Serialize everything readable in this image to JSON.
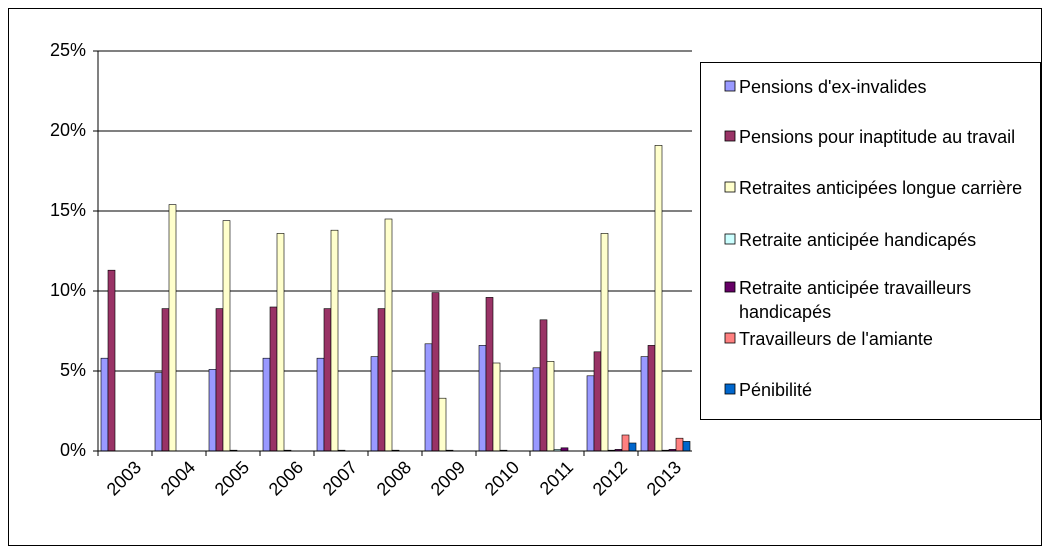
{
  "chart_data": {
    "type": "bar",
    "categories": [
      "2003",
      "2004",
      "2005",
      "2006",
      "2007",
      "2008",
      "2009",
      "2010",
      "2011",
      "2012",
      "2013"
    ],
    "series": [
      {
        "name": "Pensions d'ex-invalides",
        "color": "#9999ff",
        "values": [
          5.8,
          4.9,
          5.1,
          5.8,
          5.8,
          5.9,
          6.7,
          6.6,
          5.2,
          4.7,
          5.9
        ]
      },
      {
        "name": "Pensions pour inaptitude au travail",
        "color": "#993366",
        "values": [
          11.3,
          8.9,
          8.9,
          9.0,
          8.9,
          8.9,
          9.9,
          9.6,
          8.2,
          6.2,
          6.6
        ]
      },
      {
        "name": "Retraites anticipées longue carrière",
        "color": "#ffffcc",
        "values": [
          null,
          15.4,
          14.4,
          13.6,
          13.8,
          14.5,
          3.3,
          5.5,
          5.6,
          13.6,
          19.1
        ]
      },
      {
        "name": "Retraite anticipée handicapés",
        "color": "#ccffff",
        "values": [
          null,
          null,
          0.05,
          0.05,
          0.05,
          0.05,
          0.05,
          0.05,
          0.1,
          0.05,
          0.05
        ]
      },
      {
        "name": "Retraite anticipée travailleurs handicapés",
        "color": "#660066",
        "values": [
          null,
          null,
          null,
          null,
          null,
          null,
          null,
          null,
          0.2,
          0.1,
          0.1
        ]
      },
      {
        "name": "Travailleurs de l'amiante",
        "color": "#ff8080",
        "values": [
          null,
          null,
          null,
          null,
          null,
          null,
          null,
          null,
          null,
          1.0,
          0.8
        ]
      },
      {
        "name": "Pénibilité",
        "color": "#0066cc",
        "values": [
          null,
          null,
          null,
          null,
          null,
          null,
          null,
          null,
          null,
          0.5,
          0.6
        ]
      }
    ],
    "ylim": [
      0,
      25
    ],
    "yticks": [
      {
        "value": 0,
        "label": "0%"
      },
      {
        "value": 5,
        "label": "5%"
      },
      {
        "value": 10,
        "label": "10%"
      },
      {
        "value": 15,
        "label": "15%"
      },
      {
        "value": 20,
        "label": "20%"
      },
      {
        "value": 25,
        "label": "25%"
      }
    ],
    "grid": true,
    "legend": "right"
  }
}
